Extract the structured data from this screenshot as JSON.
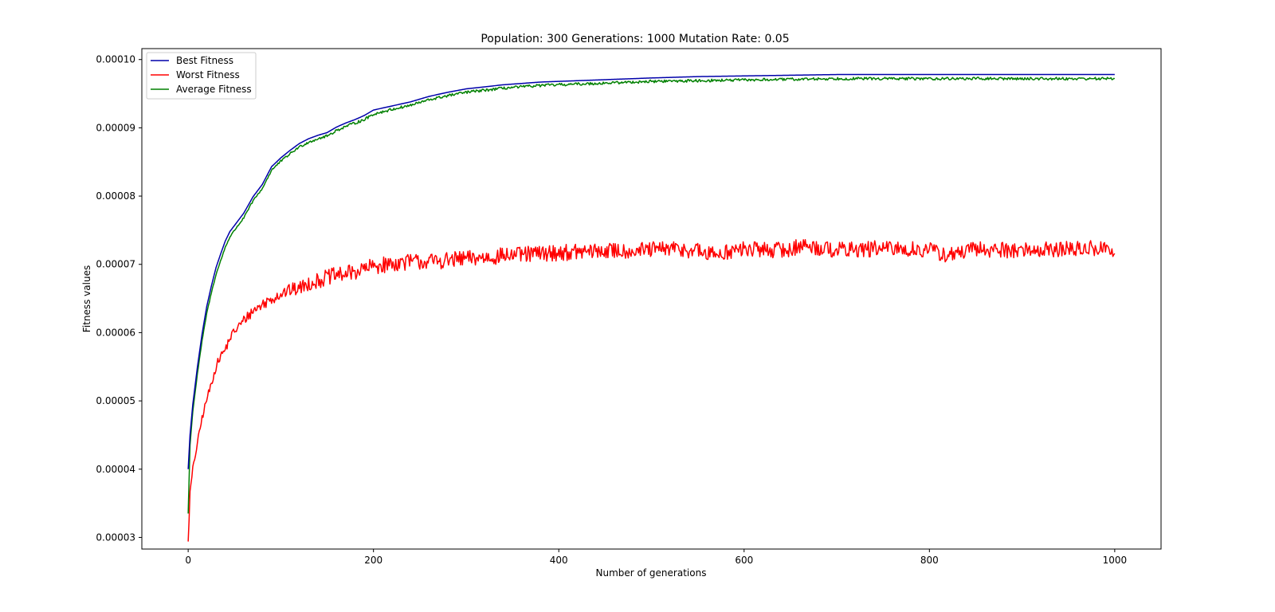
{
  "chart_data": {
    "type": "line",
    "title": "Population: 300 Generations: 1000 Mutation Rate: 0.05",
    "xlabel": "Number of generations",
    "ylabel": "Fitness values",
    "xlim": [
      -50,
      1050
    ],
    "ylim": [
      2.83e-05,
      0.0001016
    ],
    "xticks": [
      0,
      200,
      400,
      600,
      800,
      1000
    ],
    "xtick_labels": [
      "0",
      "200",
      "400",
      "600",
      "800",
      "1000"
    ],
    "yticks": [
      3e-05,
      4e-05,
      5e-05,
      6e-05,
      7e-05,
      8e-05,
      9e-05,
      0.0001
    ],
    "ytick_labels": [
      "0.00003",
      "0.00004",
      "0.00005",
      "0.00006",
      "0.00007",
      "0.00008",
      "0.00009",
      "0.00010"
    ],
    "grid": false,
    "legend_position": "top-left",
    "series": [
      {
        "name": "Best Fitness",
        "color": "#0000aa",
        "x": [
          0,
          2,
          5,
          10,
          15,
          20,
          25,
          30,
          35,
          40,
          45,
          50,
          60,
          70,
          80,
          90,
          100,
          110,
          120,
          130,
          140,
          150,
          160,
          170,
          180,
          190,
          200,
          220,
          240,
          260,
          280,
          300,
          320,
          340,
          360,
          380,
          400,
          420,
          440,
          460,
          480,
          500,
          550,
          600,
          650,
          700,
          750,
          800,
          850,
          900,
          950,
          1000
        ],
        "values": [
          4e-05,
          4.5e-05,
          4.95e-05,
          5.5e-05,
          5.98e-05,
          6.38e-05,
          6.68e-05,
          6.95e-05,
          7.15e-05,
          7.34e-05,
          7.48e-05,
          7.57e-05,
          7.75e-05,
          7.99e-05,
          8.17e-05,
          8.43e-05,
          8.56e-05,
          8.67e-05,
          8.77e-05,
          8.84e-05,
          8.89e-05,
          8.93e-05,
          9.01e-05,
          9.07e-05,
          9.12e-05,
          9.18e-05,
          9.26e-05,
          9.32e-05,
          9.38e-05,
          9.46e-05,
          9.52e-05,
          9.57e-05,
          9.6e-05,
          9.63e-05,
          9.65e-05,
          9.67e-05,
          9.68e-05,
          9.69e-05,
          9.7e-05,
          9.71e-05,
          9.72e-05,
          9.73e-05,
          9.75e-05,
          9.76e-05,
          9.77e-05,
          9.78e-05,
          9.78e-05,
          9.78e-05,
          9.78e-05,
          9.78e-05,
          9.78e-05,
          9.78e-05
        ]
      },
      {
        "name": "Worst Fitness",
        "color": "#ff0000",
        "x": [
          0,
          2,
          5,
          10,
          15,
          20,
          25,
          30,
          35,
          40,
          45,
          50,
          60,
          70,
          80,
          90,
          100,
          110,
          120,
          130,
          140,
          150,
          160,
          170,
          180,
          190,
          200,
          220,
          240,
          260,
          280,
          300,
          320,
          340,
          360,
          380,
          400,
          420,
          440,
          460,
          480,
          500,
          520,
          550,
          560,
          600,
          650,
          660,
          700,
          750,
          800,
          820,
          850,
          900,
          950,
          990,
          1000
        ],
        "values": [
          2.94e-05,
          3.65e-05,
          4e-05,
          4.38e-05,
          4.75e-05,
          5.02e-05,
          5.25e-05,
          5.5e-05,
          5.66e-05,
          5.75e-05,
          5.92e-05,
          6.02e-05,
          6.18e-05,
          6.32e-05,
          6.41e-05,
          6.5e-05,
          6.57e-05,
          6.62e-05,
          6.65e-05,
          6.72e-05,
          6.76e-05,
          6.81e-05,
          6.84e-05,
          6.86e-05,
          6.89e-05,
          6.93e-05,
          6.97e-05,
          7.01e-05,
          7.04e-05,
          7.04e-05,
          7.06e-05,
          7.08e-05,
          7.1e-05,
          7.13e-05,
          7.14e-05,
          7.16e-05,
          7.17e-05,
          7.18e-05,
          7.19e-05,
          7.2e-05,
          7.2e-05,
          7.21e-05,
          7.23e-05,
          7.2e-05,
          7.14e-05,
          7.22e-05,
          7.21e-05,
          7.28e-05,
          7.21e-05,
          7.23e-05,
          7.21e-05,
          7.13e-05,
          7.22e-05,
          7.21e-05,
          7.22e-05,
          7.24e-05,
          7.16e-05
        ],
        "noise_amplitude": 1.2e-06
      },
      {
        "name": "Average Fitness",
        "color": "#008000",
        "x": [
          0,
          2,
          5,
          10,
          15,
          20,
          25,
          30,
          35,
          40,
          45,
          50,
          60,
          70,
          80,
          90,
          100,
          110,
          120,
          130,
          140,
          150,
          160,
          170,
          180,
          190,
          200,
          220,
          240,
          260,
          280,
          300,
          320,
          340,
          360,
          380,
          400,
          420,
          440,
          460,
          480,
          500,
          550,
          600,
          650,
          700,
          750,
          800,
          850,
          900,
          950,
          1000
        ],
        "values": [
          3.35e-05,
          4.35e-05,
          4.85e-05,
          5.4e-05,
          5.88e-05,
          6.28e-05,
          6.58e-05,
          6.85e-05,
          7.05e-05,
          7.25e-05,
          7.4e-05,
          7.5e-05,
          7.68e-05,
          7.93e-05,
          8.11e-05,
          8.38e-05,
          8.51e-05,
          8.62e-05,
          8.72e-05,
          8.79e-05,
          8.84e-05,
          8.88e-05,
          8.96e-05,
          9.02e-05,
          9.07e-05,
          9.12e-05,
          9.2e-05,
          9.27e-05,
          9.33e-05,
          9.41e-05,
          9.47e-05,
          9.52e-05,
          9.55e-05,
          9.58e-05,
          9.6e-05,
          9.62e-05,
          9.63e-05,
          9.64e-05,
          9.65e-05,
          9.66e-05,
          9.67e-05,
          9.68e-05,
          9.69e-05,
          9.7e-05,
          9.71e-05,
          9.72e-05,
          9.72e-05,
          9.72e-05,
          9.72e-05,
          9.72e-05,
          9.72e-05,
          9.72e-05
        ],
        "noise_amplitude": 2e-07
      }
    ]
  }
}
